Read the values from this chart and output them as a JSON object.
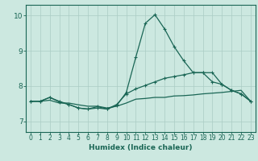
{
  "xlabel": "Humidex (Indice chaleur)",
  "xlim": [
    -0.5,
    23.5
  ],
  "ylim": [
    6.7,
    10.3
  ],
  "xticks": [
    0,
    1,
    2,
    3,
    4,
    5,
    6,
    7,
    8,
    9,
    10,
    11,
    12,
    13,
    14,
    15,
    16,
    17,
    18,
    19,
    20,
    21,
    22,
    23
  ],
  "yticks": [
    7,
    8,
    9,
    10
  ],
  "background_color": "#cce8e0",
  "grid_color": "#aaccC4",
  "line_color": "#1a6655",
  "line1_x": [
    0,
    1,
    2,
    3,
    4,
    5,
    6,
    7,
    8,
    9,
    10,
    11,
    12,
    13,
    14,
    15,
    16,
    17,
    18,
    19,
    20,
    21,
    22,
    23
  ],
  "line1_y": [
    7.57,
    7.57,
    7.68,
    7.57,
    7.48,
    7.38,
    7.35,
    7.38,
    7.35,
    7.48,
    7.78,
    7.92,
    8.02,
    8.12,
    8.22,
    8.27,
    8.32,
    8.38,
    8.38,
    8.38,
    8.05,
    7.88,
    7.78,
    7.57
  ],
  "line2_x": [
    0,
    1,
    2,
    3,
    4,
    5,
    6,
    7,
    8,
    9,
    10,
    11,
    12,
    13,
    14,
    15,
    16,
    17,
    18,
    19,
    20,
    21,
    22,
    23
  ],
  "line2_y": [
    7.57,
    7.57,
    7.68,
    7.55,
    7.48,
    7.38,
    7.35,
    7.42,
    7.35,
    7.45,
    7.82,
    8.82,
    9.78,
    10.02,
    9.62,
    9.12,
    8.72,
    8.38,
    8.38,
    8.12,
    8.05,
    7.88,
    7.78,
    7.57
  ],
  "line3_x": [
    0,
    1,
    2,
    3,
    4,
    5,
    6,
    7,
    8,
    9,
    10,
    11,
    12,
    13,
    14,
    15,
    16,
    17,
    18,
    19,
    20,
    21,
    22,
    23
  ],
  "line3_y": [
    7.57,
    7.57,
    7.6,
    7.52,
    7.52,
    7.47,
    7.43,
    7.43,
    7.38,
    7.43,
    7.52,
    7.63,
    7.65,
    7.68,
    7.68,
    7.72,
    7.73,
    7.75,
    7.78,
    7.8,
    7.82,
    7.85,
    7.88,
    7.57
  ]
}
